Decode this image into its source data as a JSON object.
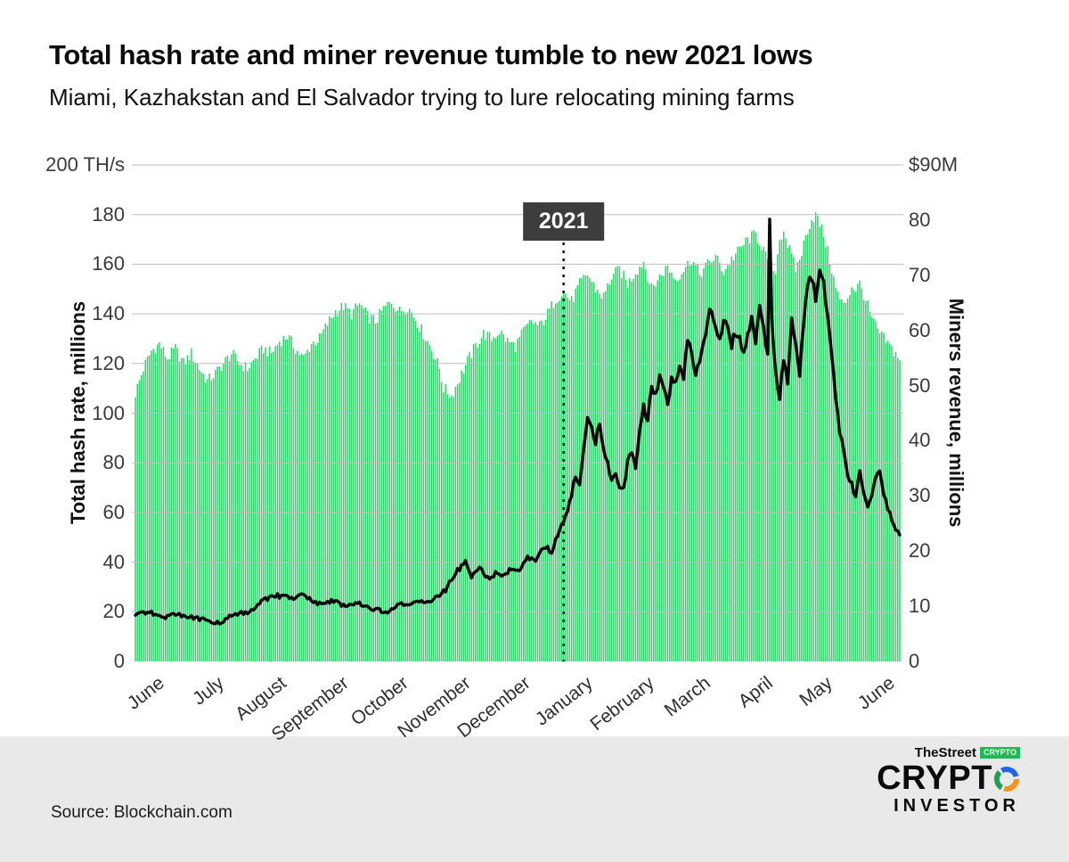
{
  "page": {
    "title": "Total hash rate and miner revenue tumble to  new 2021 lows",
    "subtitle": "Miami, Kazhakstan and El Salvador trying to lure relocating mining farms",
    "source": "Source: Blockchain.com",
    "annotation": "2021"
  },
  "logo": {
    "thestreet": "TheStreet",
    "crypto_badge": "CRYPTO",
    "wordmark": "CRYPT",
    "investor": "INVESTOR"
  },
  "chart_data": {
    "type": "bar+line",
    "title": "Total hash rate and miner revenue tumble to new 2021 lows",
    "grid": {
      "step": 20,
      "color": "#bdbdbd"
    },
    "left_axis": {
      "label": "Total hash rate, millions",
      "top_label": "200 TH/s",
      "range": [
        0,
        200
      ],
      "ticks": [
        0,
        20,
        40,
        60,
        80,
        100,
        120,
        140,
        160,
        180
      ]
    },
    "right_axis": {
      "label": "Miners revenue, millions",
      "top_label": "$90M",
      "range": [
        0,
        90
      ],
      "ticks": [
        0,
        10,
        20,
        30,
        40,
        50,
        60,
        70,
        80
      ]
    },
    "x_labels": [
      "June",
      "July",
      "August",
      "September",
      "October",
      "November",
      "December",
      "January",
      "February",
      "March",
      "April",
      "May",
      "June"
    ],
    "month_start_days": [
      0,
      30,
      61,
      92,
      122,
      153,
      183,
      214,
      245,
      273,
      304,
      334,
      365
    ],
    "total_days": 383,
    "annotation": {
      "label": "2021",
      "day": 214
    },
    "series": [
      {
        "name": "Total hash rate (TH/s)",
        "type": "bar",
        "axis": "left",
        "color": "#2ed36a",
        "points": [
          [
            0,
            108
          ],
          [
            4,
            118
          ],
          [
            8,
            125
          ],
          [
            12,
            128
          ],
          [
            16,
            122
          ],
          [
            20,
            126
          ],
          [
            24,
            120
          ],
          [
            28,
            124
          ],
          [
            32,
            118
          ],
          [
            36,
            113
          ],
          [
            40,
            116
          ],
          [
            44,
            120
          ],
          [
            48,
            124
          ],
          [
            52,
            120
          ],
          [
            56,
            118
          ],
          [
            60,
            122
          ],
          [
            64,
            126
          ],
          [
            68,
            124
          ],
          [
            72,
            129
          ],
          [
            76,
            131
          ],
          [
            80,
            126
          ],
          [
            84,
            122
          ],
          [
            88,
            128
          ],
          [
            92,
            130
          ],
          [
            96,
            136
          ],
          [
            100,
            141
          ],
          [
            104,
            143
          ],
          [
            108,
            140
          ],
          [
            112,
            144
          ],
          [
            116,
            139
          ],
          [
            120,
            137
          ],
          [
            124,
            142
          ],
          [
            128,
            145
          ],
          [
            132,
            141
          ],
          [
            136,
            143
          ],
          [
            140,
            138
          ],
          [
            144,
            132
          ],
          [
            148,
            126
          ],
          [
            152,
            118
          ],
          [
            154,
            110
          ],
          [
            158,
            107
          ],
          [
            162,
            114
          ],
          [
            166,
            121
          ],
          [
            170,
            127
          ],
          [
            174,
            132
          ],
          [
            178,
            130
          ],
          [
            182,
            133
          ],
          [
            186,
            129
          ],
          [
            190,
            127
          ],
          [
            194,
            133
          ],
          [
            198,
            137
          ],
          [
            202,
            135
          ],
          [
            206,
            140
          ],
          [
            210,
            146
          ],
          [
            214,
            149
          ],
          [
            218,
            145
          ],
          [
            222,
            152
          ],
          [
            226,
            156
          ],
          [
            230,
            150
          ],
          [
            234,
            147
          ],
          [
            238,
            155
          ],
          [
            242,
            158
          ],
          [
            246,
            152
          ],
          [
            250,
            157
          ],
          [
            254,
            161
          ],
          [
            258,
            150
          ],
          [
            262,
            155
          ],
          [
            266,
            159
          ],
          [
            270,
            154
          ],
          [
            274,
            158
          ],
          [
            278,
            162
          ],
          [
            282,
            156
          ],
          [
            286,
            160
          ],
          [
            290,
            163
          ],
          [
            294,
            157
          ],
          [
            298,
            162
          ],
          [
            302,
            166
          ],
          [
            306,
            170
          ],
          [
            310,
            172
          ],
          [
            314,
            166
          ],
          [
            316,
            160
          ],
          [
            318,
            152
          ],
          [
            320,
            158
          ],
          [
            322,
            170
          ],
          [
            324,
            174
          ],
          [
            326,
            168
          ],
          [
            328,
            163
          ],
          [
            330,
            158
          ],
          [
            332,
            162
          ],
          [
            334,
            168
          ],
          [
            336,
            174
          ],
          [
            338,
            178
          ],
          [
            340,
            180
          ],
          [
            342,
            176
          ],
          [
            344,
            172
          ],
          [
            346,
            165
          ],
          [
            348,
            158
          ],
          [
            350,
            150
          ],
          [
            352,
            146
          ],
          [
            354,
            143
          ],
          [
            356,
            147
          ],
          [
            358,
            151
          ],
          [
            360,
            150
          ],
          [
            362,
            152
          ],
          [
            364,
            148
          ],
          [
            366,
            143
          ],
          [
            368,
            138
          ],
          [
            370,
            135
          ],
          [
            372,
            132
          ],
          [
            374,
            130
          ],
          [
            376,
            128
          ],
          [
            378,
            126
          ],
          [
            380,
            124
          ],
          [
            382,
            122
          ]
        ]
      },
      {
        "name": "Miners revenue ($M)",
        "type": "line",
        "axis": "right",
        "color": "#0a0a0a",
        "points": [
          [
            0,
            8.5
          ],
          [
            7,
            9
          ],
          [
            14,
            8
          ],
          [
            21,
            8.5
          ],
          [
            28,
            8
          ],
          [
            35,
            7.5
          ],
          [
            42,
            7
          ],
          [
            49,
            8.5
          ],
          [
            56,
            9
          ],
          [
            60,
            9.5
          ],
          [
            63,
            11
          ],
          [
            70,
            12
          ],
          [
            77,
            11.5
          ],
          [
            84,
            12
          ],
          [
            91,
            10.5
          ],
          [
            98,
            11
          ],
          [
            105,
            10
          ],
          [
            112,
            10.5
          ],
          [
            119,
            9.5
          ],
          [
            126,
            9
          ],
          [
            133,
            10.5
          ],
          [
            140,
            10.5
          ],
          [
            147,
            11
          ],
          [
            152,
            12
          ],
          [
            155,
            13
          ],
          [
            160,
            16
          ],
          [
            165,
            18
          ],
          [
            168,
            15.5
          ],
          [
            172,
            17
          ],
          [
            176,
            15
          ],
          [
            180,
            16
          ],
          [
            184,
            15.5
          ],
          [
            188,
            17
          ],
          [
            192,
            16
          ],
          [
            196,
            19
          ],
          [
            200,
            18
          ],
          [
            204,
            21
          ],
          [
            208,
            20
          ],
          [
            212,
            24
          ],
          [
            216,
            27
          ],
          [
            218,
            30
          ],
          [
            220,
            34
          ],
          [
            222,
            32
          ],
          [
            224,
            38
          ],
          [
            226,
            44
          ],
          [
            228,
            42
          ],
          [
            230,
            40
          ],
          [
            232,
            43
          ],
          [
            234,
            38
          ],
          [
            236,
            36
          ],
          [
            238,
            33
          ],
          [
            240,
            34
          ],
          [
            242,
            32
          ],
          [
            244,
            31
          ],
          [
            246,
            36
          ],
          [
            248,
            38
          ],
          [
            250,
            35
          ],
          [
            252,
            42
          ],
          [
            254,
            46
          ],
          [
            256,
            44
          ],
          [
            258,
            50
          ],
          [
            260,
            48
          ],
          [
            262,
            52
          ],
          [
            264,
            50
          ],
          [
            266,
            46
          ],
          [
            268,
            52
          ],
          [
            270,
            50
          ],
          [
            272,
            54
          ],
          [
            274,
            52
          ],
          [
            276,
            58
          ],
          [
            278,
            56
          ],
          [
            280,
            52
          ],
          [
            282,
            55
          ],
          [
            284,
            58
          ],
          [
            286,
            62
          ],
          [
            288,
            64
          ],
          [
            290,
            60
          ],
          [
            292,
            58
          ],
          [
            294,
            62
          ],
          [
            296,
            60
          ],
          [
            298,
            57
          ],
          [
            300,
            60
          ],
          [
            302,
            58
          ],
          [
            304,
            56
          ],
          [
            306,
            60
          ],
          [
            308,
            62
          ],
          [
            310,
            58
          ],
          [
            312,
            64
          ],
          [
            314,
            60
          ],
          [
            316,
            56
          ],
          [
            317,
            79
          ],
          [
            318,
            62
          ],
          [
            320,
            52
          ],
          [
            322,
            48
          ],
          [
            324,
            55
          ],
          [
            326,
            50
          ],
          [
            328,
            62
          ],
          [
            330,
            58
          ],
          [
            332,
            52
          ],
          [
            334,
            62
          ],
          [
            336,
            68
          ],
          [
            338,
            70
          ],
          [
            340,
            66
          ],
          [
            342,
            70
          ],
          [
            344,
            68
          ],
          [
            346,
            62
          ],
          [
            348,
            55
          ],
          [
            350,
            48
          ],
          [
            352,
            42
          ],
          [
            354,
            38
          ],
          [
            356,
            34
          ],
          [
            358,
            32
          ],
          [
            360,
            30
          ],
          [
            362,
            34
          ],
          [
            364,
            30
          ],
          [
            366,
            28
          ],
          [
            368,
            30
          ],
          [
            370,
            33
          ],
          [
            372,
            35
          ],
          [
            374,
            30
          ],
          [
            376,
            28
          ],
          [
            378,
            26
          ],
          [
            380,
            24
          ],
          [
            382,
            23
          ]
        ]
      }
    ]
  }
}
